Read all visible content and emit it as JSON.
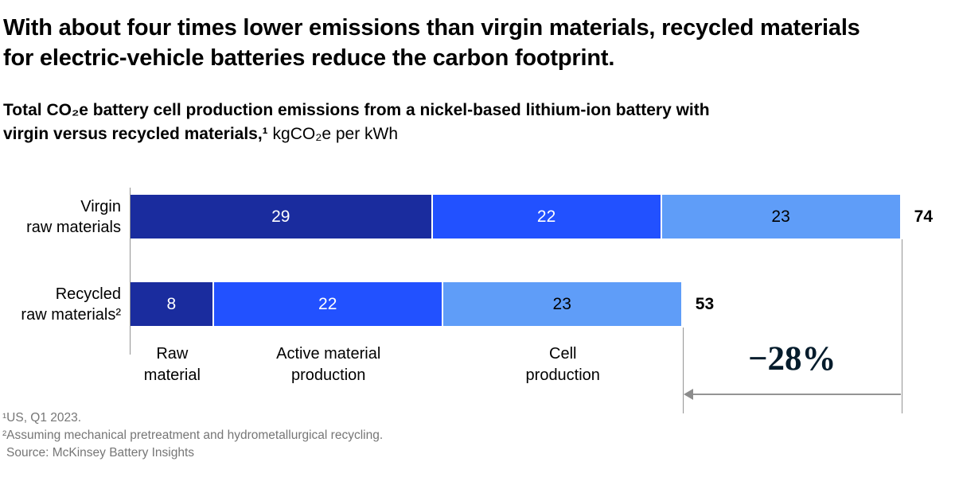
{
  "header": {
    "title_line1": "With about four times lower emissions than virgin materials, recycled materials",
    "title_line2": "for electric-vehicle batteries reduce the carbon footprint.",
    "subtitle_bold_line1": "Total CO₂e battery cell production emissions from a nickel-based lithium-ion battery with",
    "subtitle_bold_line2": "virgin versus recycled materials,¹",
    "subtitle_regular": " kgCO₂e per kWh"
  },
  "chart_data": {
    "type": "bar",
    "orientation": "horizontal",
    "stacked": true,
    "title": "Total CO₂e battery cell production emissions from a nickel-based lithium-ion battery with virgin versus recycled materials,¹",
    "unit_label": "kgCO₂e per kWh",
    "grid": false,
    "legend_position": "below-bars",
    "segments": [
      {
        "name": "Raw material",
        "label": "Raw\nmaterial",
        "color": "#1A2C9E",
        "value_text_color": "#FFFFFF"
      },
      {
        "name": "Active material production",
        "label": "Active material\nproduction",
        "color": "#2251FF",
        "value_text_color": "#FFFFFF"
      },
      {
        "name": "Cell production",
        "label": "Cell\nproduction",
        "color": "#5F9DF8",
        "value_text_color": "#000000"
      }
    ],
    "rows": [
      {
        "label": "Virgin\nraw materials",
        "values": [
          29,
          22,
          23
        ],
        "total": 74
      },
      {
        "label": "Recycled\nraw materials²",
        "values": [
          8,
          22,
          23
        ],
        "total": 53
      }
    ],
    "annotation": {
      "text": "−28%",
      "color": "#051C2C"
    },
    "line_color": "#949494"
  },
  "footnotes": [
    "¹US, Q1 2023.",
    "²Assuming mechanical pretreatment and hydrometallurgical recycling.",
    "Source: McKinsey Battery Insights"
  ]
}
